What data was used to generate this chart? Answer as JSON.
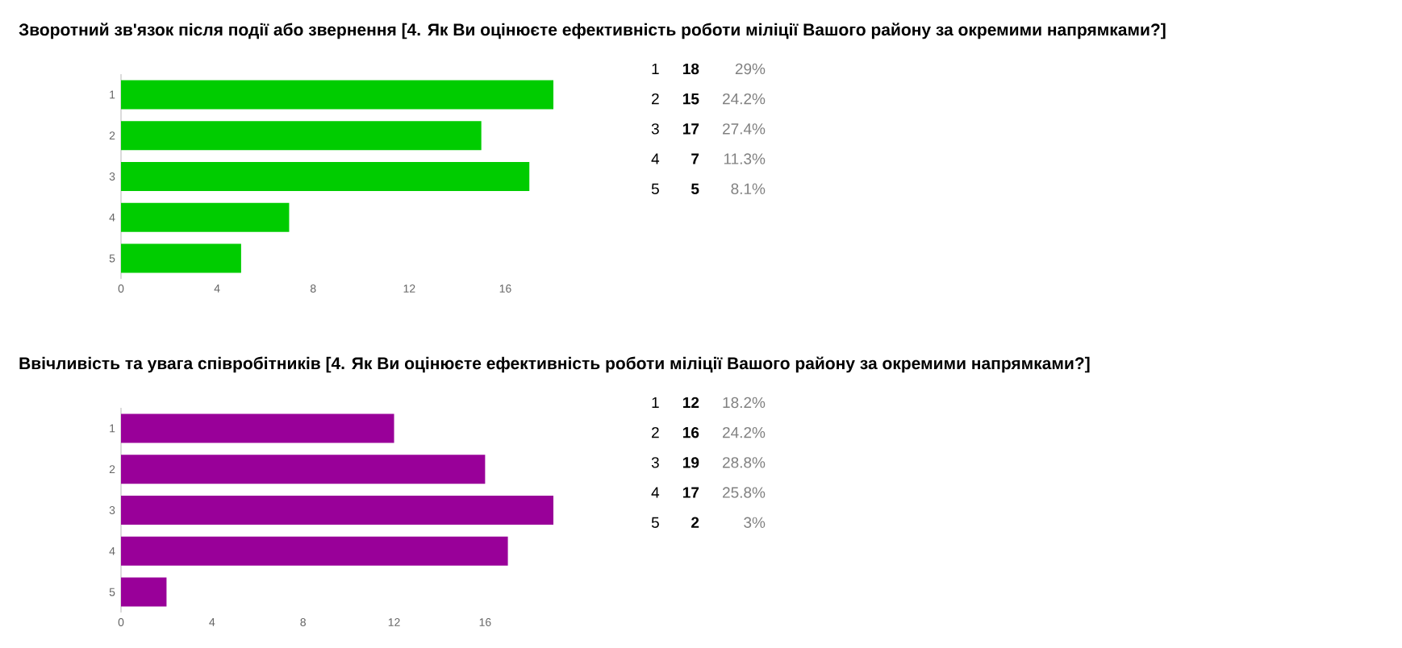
{
  "chart_data": [
    {
      "type": "bar",
      "orientation": "horizontal",
      "title": "Зворотний зв'язок після події або звернення [4. Як Ви оцінюєте ефективність роботи міліції Вашого району за окремими напрямками?]",
      "categories": [
        "1",
        "2",
        "3",
        "4",
        "5"
      ],
      "values": [
        18,
        15,
        17,
        7,
        5
      ],
      "annotations": [
        "18",
        "15",
        "17",
        "7",
        "5",
        "29%",
        "24.2%",
        "27.4%",
        "11.3%",
        "8.1%"
      ],
      "color": "#00cc00",
      "xlim": [
        0,
        18
      ],
      "xticks": [
        0,
        4,
        8,
        12,
        16
      ]
    },
    {
      "type": "bar",
      "orientation": "horizontal",
      "title": "Ввічливість та увага співробітників [4. Як Ви оцінюєте ефективність роботи міліції Вашого району за окремими напрямками?]",
      "categories": [
        "1",
        "2",
        "3",
        "4",
        "5"
      ],
      "values": [
        12,
        16,
        19,
        17,
        2
      ],
      "annotations": [
        "12",
        "16",
        "19",
        "17",
        "2",
        "18.2%",
        "24.2%",
        "28.8%",
        "25.8%",
        "3%"
      ],
      "color": "#990099",
      "xlim": [
        0,
        19
      ],
      "xticks": [
        0,
        4,
        8,
        12,
        16
      ]
    }
  ]
}
